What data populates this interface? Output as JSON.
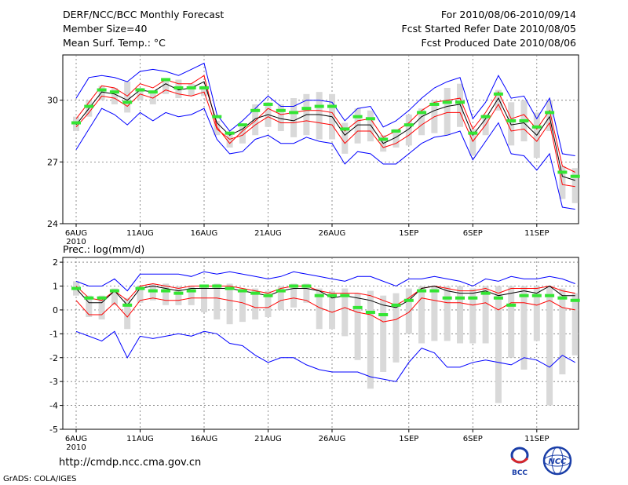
{
  "header": {
    "title": "DERF/NCC/BCC Monthly Forecast",
    "member_size": "Member Size=40",
    "variable": "Mean Surf. Temp.: °C",
    "period": "For 2010/08/06-2010/09/14",
    "started": "Fcst Started Refer Date 2010/08/05",
    "produced": "Fcst Produced Date 2010/08/06"
  },
  "footer": {
    "url": "http://cmdp.ncc.cma.gov.cn",
    "credit": "GrADS: COLA/IGES",
    "logo_left_text": "BCC",
    "logo_right_text": "NCC"
  },
  "colors": {
    "envelope": "#0000ff",
    "spread": "#ff0000",
    "mean": "#000000",
    "box": "#d9d9d9",
    "median": "#33e533"
  },
  "chart_data": [
    {
      "type": "line",
      "title": "Mean Surf. Temp.: °C",
      "xlabel": "",
      "ylabel": "°C",
      "x_tick_labels": [
        "6AUG",
        "11AUG",
        "16AUG",
        "21AUG",
        "26AUG",
        "1SEP",
        "6SEP",
        "11SEP"
      ],
      "x_tick_index": [
        0,
        5,
        10,
        15,
        20,
        26,
        31,
        36
      ],
      "x_year_label": "2010",
      "ylim": [
        24,
        32.2
      ],
      "y_ticks": [
        24,
        27,
        30
      ],
      "grid": true,
      "n_days": 40,
      "series": [
        {
          "name": "ensemble max",
          "values": [
            30.1,
            31.1,
            31.2,
            31.1,
            30.9,
            31.4,
            31.5,
            31.4,
            31.2,
            31.5,
            31.8,
            29.3,
            28.5,
            29.0,
            29.6,
            30.2,
            29.7,
            29.7,
            30.0,
            30.0,
            29.9,
            29.0,
            29.6,
            29.7,
            28.7,
            29.0,
            29.5,
            30.1,
            30.6,
            30.9,
            31.1,
            29.1,
            29.9,
            31.2,
            30.1,
            30.2,
            29.1,
            30.1,
            27.4,
            27.3
          ]
        },
        {
          "name": "ensemble mean + 1sd",
          "values": [
            29.1,
            29.9,
            30.7,
            30.6,
            30.2,
            30.8,
            30.6,
            31.0,
            30.8,
            30.8,
            31.2,
            28.7,
            27.9,
            28.5,
            29.0,
            29.6,
            29.3,
            29.4,
            29.5,
            29.5,
            29.4,
            28.5,
            29.0,
            29.1,
            28.2,
            28.5,
            28.9,
            29.5,
            29.9,
            30.0,
            30.1,
            28.6,
            29.4,
            30.4,
            29.1,
            29.3,
            28.6,
            29.5,
            26.8,
            26.5
          ]
        },
        {
          "name": "ensemble mean",
          "values": [
            28.8,
            29.6,
            30.4,
            30.3,
            30.0,
            30.5,
            30.4,
            30.8,
            30.5,
            30.6,
            30.9,
            28.9,
            28.3,
            28.6,
            29.1,
            29.3,
            29.1,
            29.0,
            29.3,
            29.3,
            29.2,
            28.3,
            28.8,
            28.8,
            27.9,
            28.2,
            28.6,
            29.2,
            29.5,
            29.7,
            29.8,
            28.3,
            29.1,
            30.1,
            28.8,
            28.9,
            28.3,
            29.2,
            26.3,
            26.1
          ]
        },
        {
          "name": "ensemble mean - 1sd",
          "values": [
            28.7,
            29.4,
            30.2,
            30.1,
            29.7,
            30.3,
            30.1,
            30.5,
            30.3,
            30.2,
            30.4,
            28.6,
            28.1,
            28.3,
            28.8,
            29.2,
            28.9,
            28.9,
            29.0,
            28.9,
            28.8,
            27.9,
            28.5,
            28.5,
            27.7,
            27.9,
            28.3,
            28.8,
            29.2,
            29.4,
            29.4,
            28.0,
            28.8,
            29.8,
            28.5,
            28.6,
            28.0,
            28.9,
            25.9,
            25.8
          ]
        },
        {
          "name": "ensemble min",
          "values": [
            27.6,
            28.6,
            29.6,
            29.3,
            28.8,
            29.4,
            29.0,
            29.4,
            29.2,
            29.3,
            29.6,
            28.1,
            27.4,
            27.5,
            28.1,
            28.3,
            27.9,
            27.9,
            28.2,
            28.0,
            27.9,
            26.9,
            27.5,
            27.4,
            26.9,
            26.9,
            27.4,
            27.9,
            28.2,
            28.3,
            28.5,
            27.1,
            28.0,
            28.9,
            27.4,
            27.3,
            26.6,
            27.4,
            24.8,
            24.7
          ]
        },
        {
          "name": "box upper",
          "values": [
            29.2,
            30.0,
            30.7,
            30.6,
            30.9,
            30.6,
            30.4,
            31.0,
            31.0,
            30.8,
            30.7,
            29.0,
            28.4,
            28.7,
            29.8,
            29.9,
            29.8,
            30.1,
            30.3,
            30.4,
            30.3,
            28.9,
            29.6,
            29.5,
            28.3,
            28.6,
            29.3,
            29.6,
            30.0,
            30.6,
            30.8,
            28.6,
            29.3,
            30.5,
            29.9,
            30.0,
            29.4,
            30.0,
            26.8,
            26.7
          ]
        },
        {
          "name": "box lower",
          "values": [
            28.5,
            29.2,
            30.0,
            29.8,
            29.4,
            30.0,
            29.8,
            30.3,
            30.1,
            30.2,
            30.2,
            28.3,
            27.7,
            27.9,
            28.3,
            28.7,
            28.5,
            28.2,
            28.3,
            28.1,
            28.1,
            27.4,
            27.9,
            28.0,
            27.5,
            27.7,
            27.8,
            28.3,
            28.4,
            28.3,
            28.7,
            27.3,
            28.3,
            29.5,
            27.8,
            28.0,
            27.2,
            28.5,
            25.2,
            25.0
          ]
        },
        {
          "name": "median",
          "values": [
            28.9,
            29.7,
            30.5,
            30.4,
            29.9,
            30.5,
            30.4,
            31.0,
            30.6,
            30.6,
            30.6,
            29.2,
            28.4,
            28.8,
            29.5,
            29.8,
            29.5,
            29.4,
            29.6,
            29.7,
            29.7,
            28.6,
            29.2,
            29.1,
            28.1,
            28.5,
            28.8,
            29.4,
            29.8,
            29.9,
            29.9,
            28.4,
            29.2,
            30.3,
            29.0,
            29.0,
            28.7,
            29.4,
            26.5,
            26.3
          ]
        }
      ]
    },
    {
      "type": "line",
      "title": "Prec.: log(mm/d)",
      "xlabel": "",
      "ylabel": "log(mm/d)",
      "x_tick_labels": [
        "6AUG",
        "11AUG",
        "16AUG",
        "21AUG",
        "26AUG",
        "1SEP",
        "6SEP",
        "11SEP"
      ],
      "x_tick_index": [
        0,
        5,
        10,
        15,
        20,
        26,
        31,
        36
      ],
      "x_year_label": "2010",
      "ylim": [
        -5,
        2.2
      ],
      "y_ticks": [
        -5,
        -4,
        -3,
        -2,
        -1,
        0,
        1,
        2
      ],
      "grid": true,
      "n_days": 40,
      "series": [
        {
          "name": "ensemble max",
          "values": [
            1.2,
            1.0,
            1.0,
            1.3,
            0.8,
            1.5,
            1.5,
            1.5,
            1.5,
            1.4,
            1.6,
            1.5,
            1.6,
            1.5,
            1.4,
            1.3,
            1.4,
            1.6,
            1.5,
            1.4,
            1.3,
            1.2,
            1.4,
            1.4,
            1.2,
            1.0,
            1.3,
            1.3,
            1.4,
            1.3,
            1.2,
            1.0,
            1.3,
            1.2,
            1.4,
            1.3,
            1.3,
            1.4,
            1.3,
            1.1
          ]
        },
        {
          "name": "ensemble mean + 1sd",
          "values": [
            1.0,
            0.5,
            0.4,
            0.8,
            0.4,
            1.0,
            1.1,
            1.0,
            0.9,
            1.0,
            1.0,
            1.0,
            1.0,
            0.9,
            0.8,
            0.7,
            0.9,
            1.0,
            1.0,
            0.8,
            0.7,
            0.7,
            0.7,
            0.6,
            0.4,
            0.2,
            0.5,
            0.9,
            1.0,
            0.9,
            0.8,
            0.8,
            0.9,
            0.7,
            0.9,
            0.9,
            0.9,
            1.0,
            0.8,
            0.7
          ]
        },
        {
          "name": "ensemble mean",
          "values": [
            0.9,
            0.3,
            0.3,
            0.8,
            0.2,
            0.9,
            1.0,
            0.9,
            0.8,
            0.9,
            0.9,
            0.9,
            0.9,
            0.8,
            0.7,
            0.6,
            0.8,
            0.9,
            0.9,
            0.8,
            0.5,
            0.6,
            0.5,
            0.4,
            0.2,
            0.1,
            0.4,
            0.9,
            1.0,
            0.8,
            0.7,
            0.7,
            0.8,
            0.6,
            0.7,
            0.8,
            0.7,
            1.0,
            0.6,
            0.6
          ]
        },
        {
          "name": "ensemble mean - 1sd",
          "values": [
            0.4,
            -0.2,
            -0.2,
            0.3,
            -0.3,
            0.4,
            0.5,
            0.4,
            0.4,
            0.5,
            0.5,
            0.5,
            0.4,
            0.3,
            0.1,
            0.1,
            0.4,
            0.5,
            0.4,
            0.1,
            -0.1,
            0.1,
            -0.1,
            -0.2,
            -0.5,
            -0.4,
            -0.1,
            0.5,
            0.4,
            0.3,
            0.3,
            0.2,
            0.3,
            0.0,
            0.3,
            0.3,
            0.2,
            0.4,
            0.1,
            0.0
          ]
        },
        {
          "name": "ensemble min",
          "values": [
            -0.9,
            -1.1,
            -1.3,
            -0.9,
            -2.0,
            -1.1,
            -1.2,
            -1.1,
            -1.0,
            -1.1,
            -0.9,
            -1.0,
            -1.4,
            -1.5,
            -1.9,
            -2.2,
            -2.0,
            -2.0,
            -2.3,
            -2.5,
            -2.6,
            -2.6,
            -2.6,
            -2.8,
            -2.9,
            -3.0,
            -2.2,
            -1.6,
            -1.8,
            -2.4,
            -2.4,
            -2.2,
            -2.1,
            -2.2,
            -2.3,
            -2.0,
            -2.1,
            -2.4,
            -1.9,
            -2.2
          ]
        },
        {
          "name": "box upper",
          "values": [
            1.2,
            0.6,
            0.6,
            0.9,
            0.5,
            1.0,
            1.1,
            1.1,
            1.0,
            1.0,
            1.0,
            1.1,
            1.1,
            0.9,
            0.9,
            0.8,
            1.0,
            1.1,
            1.1,
            0.9,
            0.8,
            0.9,
            0.7,
            0.8,
            0.6,
            0.7,
            0.9,
            1.0,
            1.0,
            1.0,
            1.0,
            0.9,
            1.0,
            1.0,
            1.0,
            1.0,
            1.0,
            1.0,
            0.9,
            0.7
          ]
        },
        {
          "name": "box lower",
          "values": [
            0.6,
            -0.3,
            -0.4,
            0.2,
            -0.8,
            0.3,
            0.4,
            0.2,
            0.2,
            0.2,
            -0.1,
            -0.4,
            -0.6,
            -0.5,
            -0.4,
            -0.3,
            0.0,
            0.1,
            0.3,
            -0.8,
            -0.8,
            -1.1,
            -2.1,
            -3.3,
            -2.6,
            -2.2,
            -1.0,
            -1.4,
            -1.3,
            -1.3,
            -1.4,
            -1.4,
            -1.4,
            -3.9,
            -2.0,
            -2.5,
            -1.3,
            -4.0,
            -2.7,
            -1.9
          ]
        },
        {
          "name": "median",
          "values": [
            0.9,
            0.5,
            0.5,
            0.8,
            0.2,
            0.9,
            0.8,
            0.8,
            0.7,
            0.8,
            1.0,
            1.0,
            0.9,
            0.8,
            0.7,
            0.6,
            0.8,
            1.0,
            1.0,
            0.6,
            0.6,
            0.6,
            0.1,
            -0.1,
            -0.2,
            0.2,
            0.4,
            0.8,
            0.8,
            0.5,
            0.5,
            0.5,
            0.7,
            0.5,
            0.2,
            0.6,
            0.6,
            0.6,
            0.5,
            0.4
          ]
        }
      ]
    }
  ]
}
